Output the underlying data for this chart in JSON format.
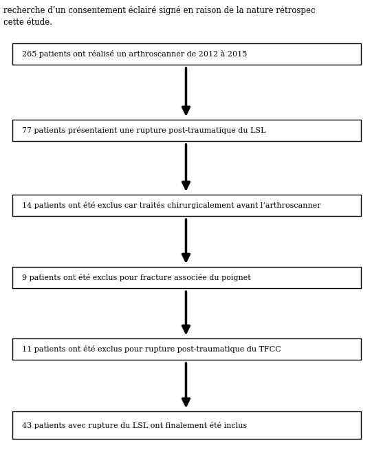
{
  "header_lines": [
    "recherche d’un consentement éclairé signé en raison de la nature rétrospec",
    "cette étude."
  ],
  "boxes": [
    "265 patients ont réalisé un arthroscanner de 2012 à 2015",
    "77 patients présentaient une rupture post-traumatique du LSL",
    "14 patients ont été exclus car traités chirurgicalement avant l’arthroscanner",
    "9 patients ont été exclus pour fracture associée du poignet",
    "11 patients ont été exclus pour rupture post-traumatique du TFCC",
    "43 patients avec rupture du LSL ont finalement été inclus"
  ],
  "box_color": "#ffffff",
  "box_edgecolor": "#000000",
  "arrow_color": "#000000",
  "text_color": "#000000",
  "bg_color": "#ffffff",
  "fontsize": 8.0,
  "header_fontsize": 8.5,
  "fig_width": 5.41,
  "fig_height": 6.6,
  "dpi": 100
}
